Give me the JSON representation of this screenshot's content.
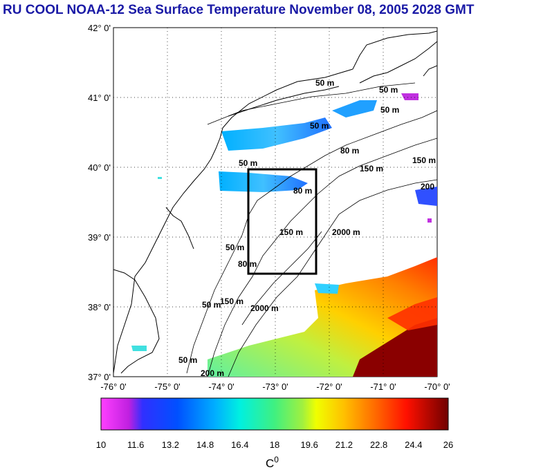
{
  "title": "RU COOL  NOAA-12 Sea Surface Temperature November 08, 2005 2028 GMT",
  "lat_labels": [
    "42° 0'",
    "41° 0'",
    "40° 0'",
    "39° 0'",
    "38° 0'",
    "37° 0'"
  ],
  "lon_labels": [
    "-76° 0'",
    "-75° 0'",
    "-74° 0'",
    "-73° 0'",
    "-72° 0'",
    "-71° 0'",
    "-70° 0'"
  ],
  "colorbar": {
    "ticks": [
      "10",
      "11.6",
      "13.2",
      "14.8",
      "16.4",
      "18",
      "19.6",
      "21.2",
      "22.8",
      "24.4",
      "26"
    ],
    "unit": "C",
    "unit_sup": "0"
  },
  "contour_labels": [
    "50 m",
    "50 m",
    "50 m",
    "50 m",
    "50 m",
    "80 m",
    "150 m",
    "150 m",
    "200",
    "80 m",
    "150 m",
    "2000 m",
    "50 m",
    "80 m",
    "50 m",
    "150 m",
    "2000 m",
    "50 m",
    "200 m"
  ],
  "colors": {
    "title": "#1a1aa6",
    "land_outline": "#000000",
    "box": "#000000"
  }
}
